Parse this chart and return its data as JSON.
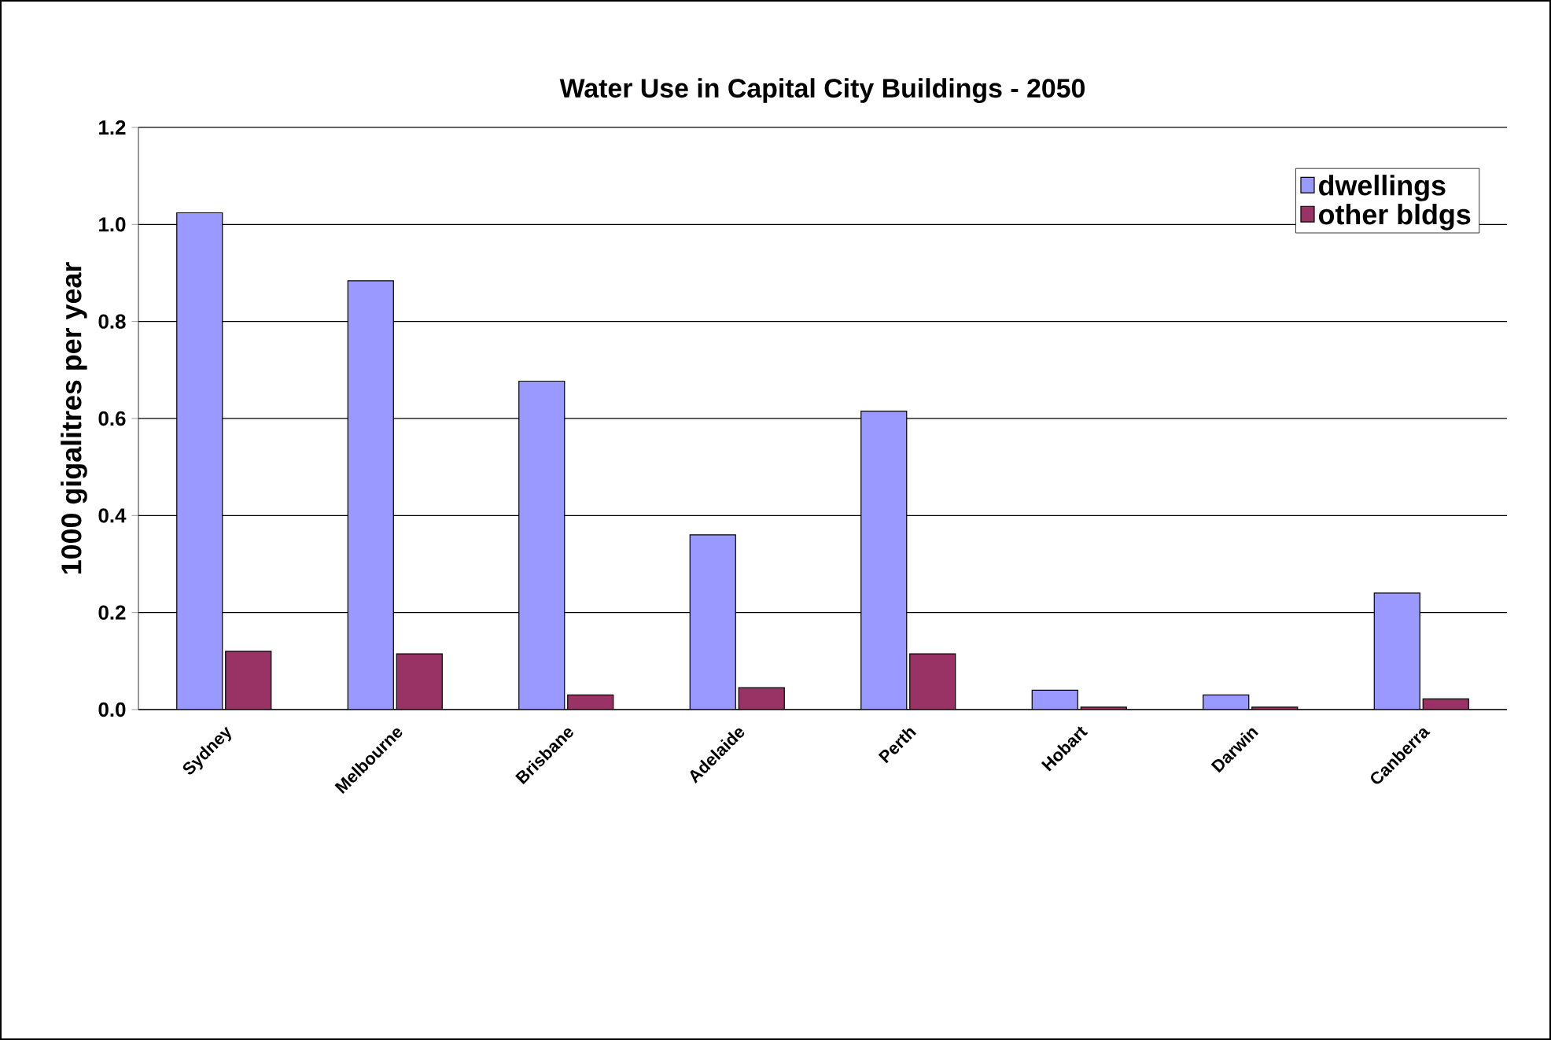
{
  "chart_data": {
    "type": "bar",
    "title": "Water Use in Capital City Buildings - 2050",
    "ylabel": "1000 gigalitres per year",
    "categories": [
      "Sydney",
      "Melbourne",
      "Brisbane",
      "Adelaide",
      "Perth",
      "Hobart",
      "Darwin",
      "Canberra"
    ],
    "series": [
      {
        "name": "dwellings",
        "color": "#9999ff",
        "values": [
          1.024,
          0.884,
          0.677,
          0.36,
          0.615,
          0.04,
          0.03,
          0.24
        ]
      },
      {
        "name": "other bldgs",
        "color": "#993366",
        "values": [
          0.12,
          0.115,
          0.03,
          0.045,
          0.115,
          0.005,
          0.005,
          0.022
        ]
      }
    ],
    "ylim": [
      0,
      1.2
    ],
    "yticks": [
      {
        "value": 0,
        "label": "0.0"
      },
      {
        "value": 0.2,
        "label": "0.2"
      },
      {
        "value": 0.4,
        "label": "0.4"
      },
      {
        "value": 0.6,
        "label": "0.6"
      },
      {
        "value": 0.8,
        "label": "0.8"
      },
      {
        "value": 1.0,
        "label": "1.0"
      },
      {
        "value": 1.2,
        "label": "1.2"
      }
    ],
    "grid": "y",
    "legend": "top right"
  }
}
